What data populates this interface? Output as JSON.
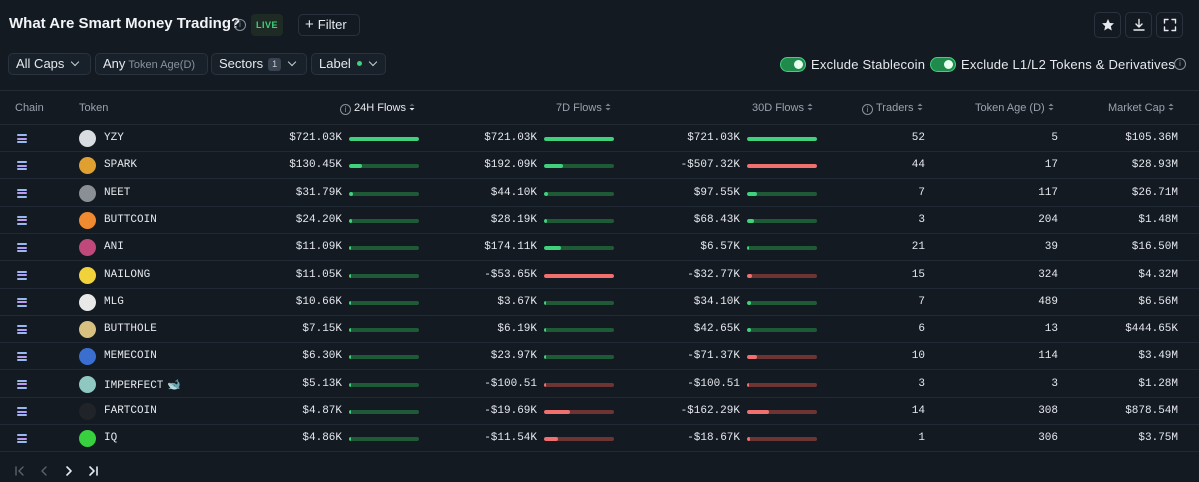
{
  "header": {
    "title": "What Are Smart Money Trading?",
    "live_label": "LIVE",
    "filter_label": "Filter"
  },
  "toolbar": {
    "caps_label": "All Caps",
    "age_label": "Any",
    "age_sub": "Token Age(D)",
    "sectors_label": "Sectors",
    "sectors_count": "1",
    "label_label": "Label",
    "exclude_stablecoin": "Exclude Stablecoin",
    "exclude_l1l2": "Exclude L1/L2 Tokens & Derivatives"
  },
  "columns": {
    "chain": "Chain",
    "token": "Token",
    "flows_24h": "24H Flows",
    "flows_7d": "7D Flows",
    "flows_30d": "30D Flows",
    "traders": "Traders",
    "token_age": "Token Age (D)",
    "market_cap": "Market Cap"
  },
  "colors": {
    "positive": "#3fd17c",
    "negative": "#f07070",
    "background": "#141a22"
  },
  "rows": [
    {
      "token": "YZY",
      "icon_color": "#d9dde2",
      "f24": "$721.03K",
      "b24": 1.0,
      "f7": "$721.03K",
      "b7": 1.0,
      "s7": "pos",
      "f30": "$721.03K",
      "b30": 1.0,
      "s30": "pos",
      "traders": "52",
      "age": "5",
      "mcap": "$105.36M",
      "tag": ""
    },
    {
      "token": "SPARK",
      "icon_color": "#e0a030",
      "f24": "$130.45K",
      "b24": 0.18,
      "f7": "$192.09K",
      "b7": 0.27,
      "s7": "pos",
      "f30": "-$507.32K",
      "b30": 1.0,
      "s30": "neg",
      "traders": "44",
      "age": "17",
      "mcap": "$28.93M",
      "tag": ""
    },
    {
      "token": "NEET",
      "icon_color": "#8a8f96",
      "f24": "$31.79K",
      "b24": 0.05,
      "f7": "$44.10K",
      "b7": 0.06,
      "s7": "pos",
      "f30": "$97.55K",
      "b30": 0.14,
      "s30": "pos",
      "traders": "7",
      "age": "117",
      "mcap": "$26.71M",
      "tag": ""
    },
    {
      "token": "BUTTCOIN",
      "icon_color": "#f08a30",
      "f24": "$24.20K",
      "b24": 0.04,
      "f7": "$28.19K",
      "b7": 0.04,
      "s7": "pos",
      "f30": "$68.43K",
      "b30": 0.1,
      "s30": "pos",
      "traders": "3",
      "age": "204",
      "mcap": "$1.48M",
      "tag": ""
    },
    {
      "token": "ANI",
      "icon_color": "#c0487a",
      "f24": "$11.09K",
      "b24": 0.02,
      "f7": "$174.11K",
      "b7": 0.24,
      "s7": "pos",
      "f30": "$6.57K",
      "b30": 0.02,
      "s30": "pos",
      "traders": "21",
      "age": "39",
      "mcap": "$16.50M",
      "tag": ""
    },
    {
      "token": "NAILONG",
      "icon_color": "#f2d23a",
      "f24": "$11.05K",
      "b24": 0.02,
      "f7": "-$53.65K",
      "b7": 1.0,
      "s7": "neg",
      "f30": "-$32.77K",
      "b30": 0.07,
      "s30": "neg",
      "traders": "15",
      "age": "324",
      "mcap": "$4.32M",
      "tag": ""
    },
    {
      "token": "MLG",
      "icon_color": "#e8e8e8",
      "f24": "$10.66K",
      "b24": 0.02,
      "f7": "$3.67K",
      "b7": 0.01,
      "s7": "pos",
      "f30": "$34.10K",
      "b30": 0.05,
      "s30": "pos",
      "traders": "7",
      "age": "489",
      "mcap": "$6.56M",
      "tag": ""
    },
    {
      "token": "BUTTHOLE",
      "icon_color": "#d8c080",
      "f24": "$7.15K",
      "b24": 0.01,
      "f7": "$6.19K",
      "b7": 0.01,
      "s7": "pos",
      "f30": "$42.65K",
      "b30": 0.06,
      "s30": "pos",
      "traders": "6",
      "age": "13",
      "mcap": "$444.65K",
      "tag": ""
    },
    {
      "token": "MEMECOIN",
      "icon_color": "#3a6fd0",
      "f24": "$6.30K",
      "b24": 0.01,
      "f7": "$23.97K",
      "b7": 0.03,
      "s7": "pos",
      "f30": "-$71.37K",
      "b30": 0.14,
      "s30": "neg",
      "traders": "10",
      "age": "114",
      "mcap": "$3.49M",
      "tag": ""
    },
    {
      "token": "IMPERFECT",
      "icon_color": "#8fc8c0",
      "f24": "$5.13K",
      "b24": 0.01,
      "f7": "-$100.51",
      "b7": 0.0,
      "s7": "neg",
      "f30": "-$100.51",
      "b30": 0.0,
      "s30": "neg",
      "traders": "3",
      "age": "3",
      "mcap": "$1.28M",
      "tag": "🐋"
    },
    {
      "token": "FARTCOIN",
      "icon_color": "#202428",
      "f24": "$4.87K",
      "b24": 0.01,
      "f7": "-$19.69K",
      "b7": 0.37,
      "s7": "neg",
      "f30": "-$162.29K",
      "b30": 0.32,
      "s30": "neg",
      "traders": "14",
      "age": "308",
      "mcap": "$878.54M",
      "tag": ""
    },
    {
      "token": "IQ",
      "icon_color": "#39d040",
      "f24": "$4.86K",
      "b24": 0.01,
      "f7": "-$11.54K",
      "b7": 0.2,
      "s7": "neg",
      "f30": "-$18.67K",
      "b30": 0.04,
      "s30": "neg",
      "traders": "1",
      "age": "306",
      "mcap": "$3.75M",
      "tag": ""
    }
  ]
}
